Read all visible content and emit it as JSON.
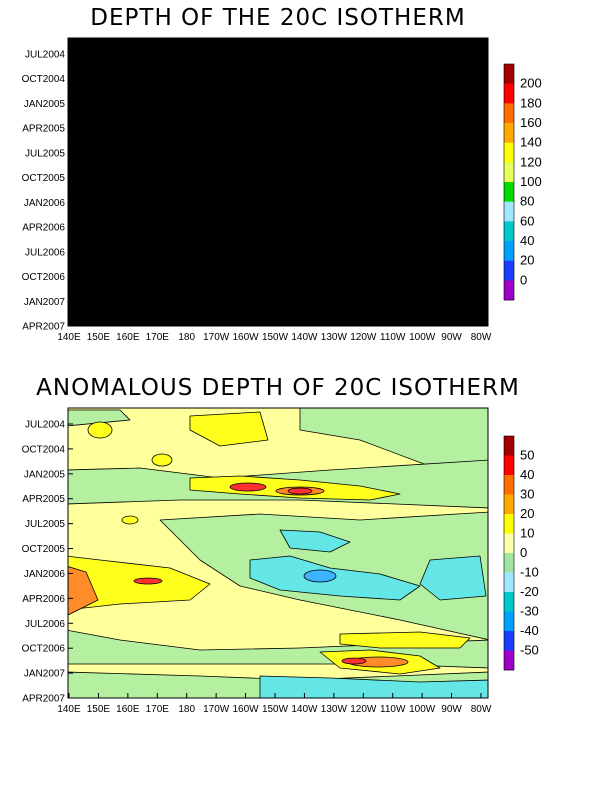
{
  "chart_data": [
    {
      "type": "heatmap",
      "title": "DEPTH OF THE 20C ISOTHERM",
      "xlabel": "",
      "ylabel": "",
      "x_tick_labels": [
        "140E",
        "150E",
        "160E",
        "170E",
        "180",
        "170W",
        "160W",
        "150W",
        "140W",
        "130W",
        "120W",
        "110W",
        "100W",
        "90W",
        "80W"
      ],
      "y_tick_labels": [
        "JUL2004",
        "OCT2004",
        "JAN2005",
        "APR2005",
        "JUL2005",
        "OCT2005",
        "JAN2006",
        "APR2006",
        "JUL2006",
        "OCT2006",
        "JAN2007",
        "APR2007"
      ],
      "colorbar": {
        "labels": [
          "200",
          "180",
          "160",
          "140",
          "120",
          "100",
          "80",
          "60",
          "40",
          "20",
          "0"
        ],
        "levels": [
          -20,
          0,
          20,
          40,
          60,
          80,
          100,
          120,
          140,
          160,
          180,
          200,
          220
        ],
        "colors": [
          "#a000c8",
          "#1e3cff",
          "#00a0ff",
          "#00c8c8",
          "#a0e6ff",
          "#00dc00",
          "#e6ff5a",
          "#ffff00",
          "#ffa800",
          "#ff6e00",
          "#ff0000",
          "#a00000"
        ]
      },
      "field_colors": {
        "c200": "#8c0000",
        "c180": "#e81c00",
        "c160": "#f27e1c",
        "c140": "#ffff3c",
        "c120": "#ffff9c",
        "c100": "#e0ffb0",
        "c80": "#a7f4a4",
        "c60": "#7cf0ff",
        "c40": "#50c8ff",
        "c20": "#0096e6"
      }
    },
    {
      "type": "heatmap",
      "title": "ANOMALOUS DEPTH OF 20C ISOTHERM",
      "xlabel": "",
      "ylabel": "",
      "x_tick_labels": [
        "140E",
        "150E",
        "160E",
        "170E",
        "180",
        "170W",
        "160W",
        "150W",
        "140W",
        "130W",
        "120W",
        "110W",
        "100W",
        "90W",
        "80W"
      ],
      "y_tick_labels": [
        "JUL2004",
        "OCT2004",
        "JAN2005",
        "APR2005",
        "JUL2005",
        "OCT2005",
        "JAN2006",
        "APR2006",
        "JUL2006",
        "OCT2006",
        "JAN2007",
        "APR2007"
      ],
      "colorbar": {
        "labels": [
          "50",
          "40",
          "30",
          "20",
          "10",
          "0",
          "-10",
          "-20",
          "-30",
          "-40",
          "-50"
        ],
        "levels": [
          -60,
          -50,
          -40,
          -30,
          -20,
          -10,
          0,
          10,
          20,
          30,
          40,
          50,
          60
        ],
        "colors": [
          "#a000c8",
          "#1e3cff",
          "#00a0ff",
          "#00c8c8",
          "#a0e6ff",
          "#a0e6a0",
          "#ffffaa",
          "#ffff00",
          "#ffa800",
          "#ff6e00",
          "#ff0000",
          "#a00000"
        ]
      },
      "field_colors": {
        "pos30": "#ff3030",
        "pos20": "#ff8c28",
        "pos10": "#ffff1e",
        "zero": "#ffff9c",
        "neg0": "#b4f0a0",
        "neg10": "#64e6e6",
        "neg20": "#3cb4ff"
      }
    }
  ]
}
